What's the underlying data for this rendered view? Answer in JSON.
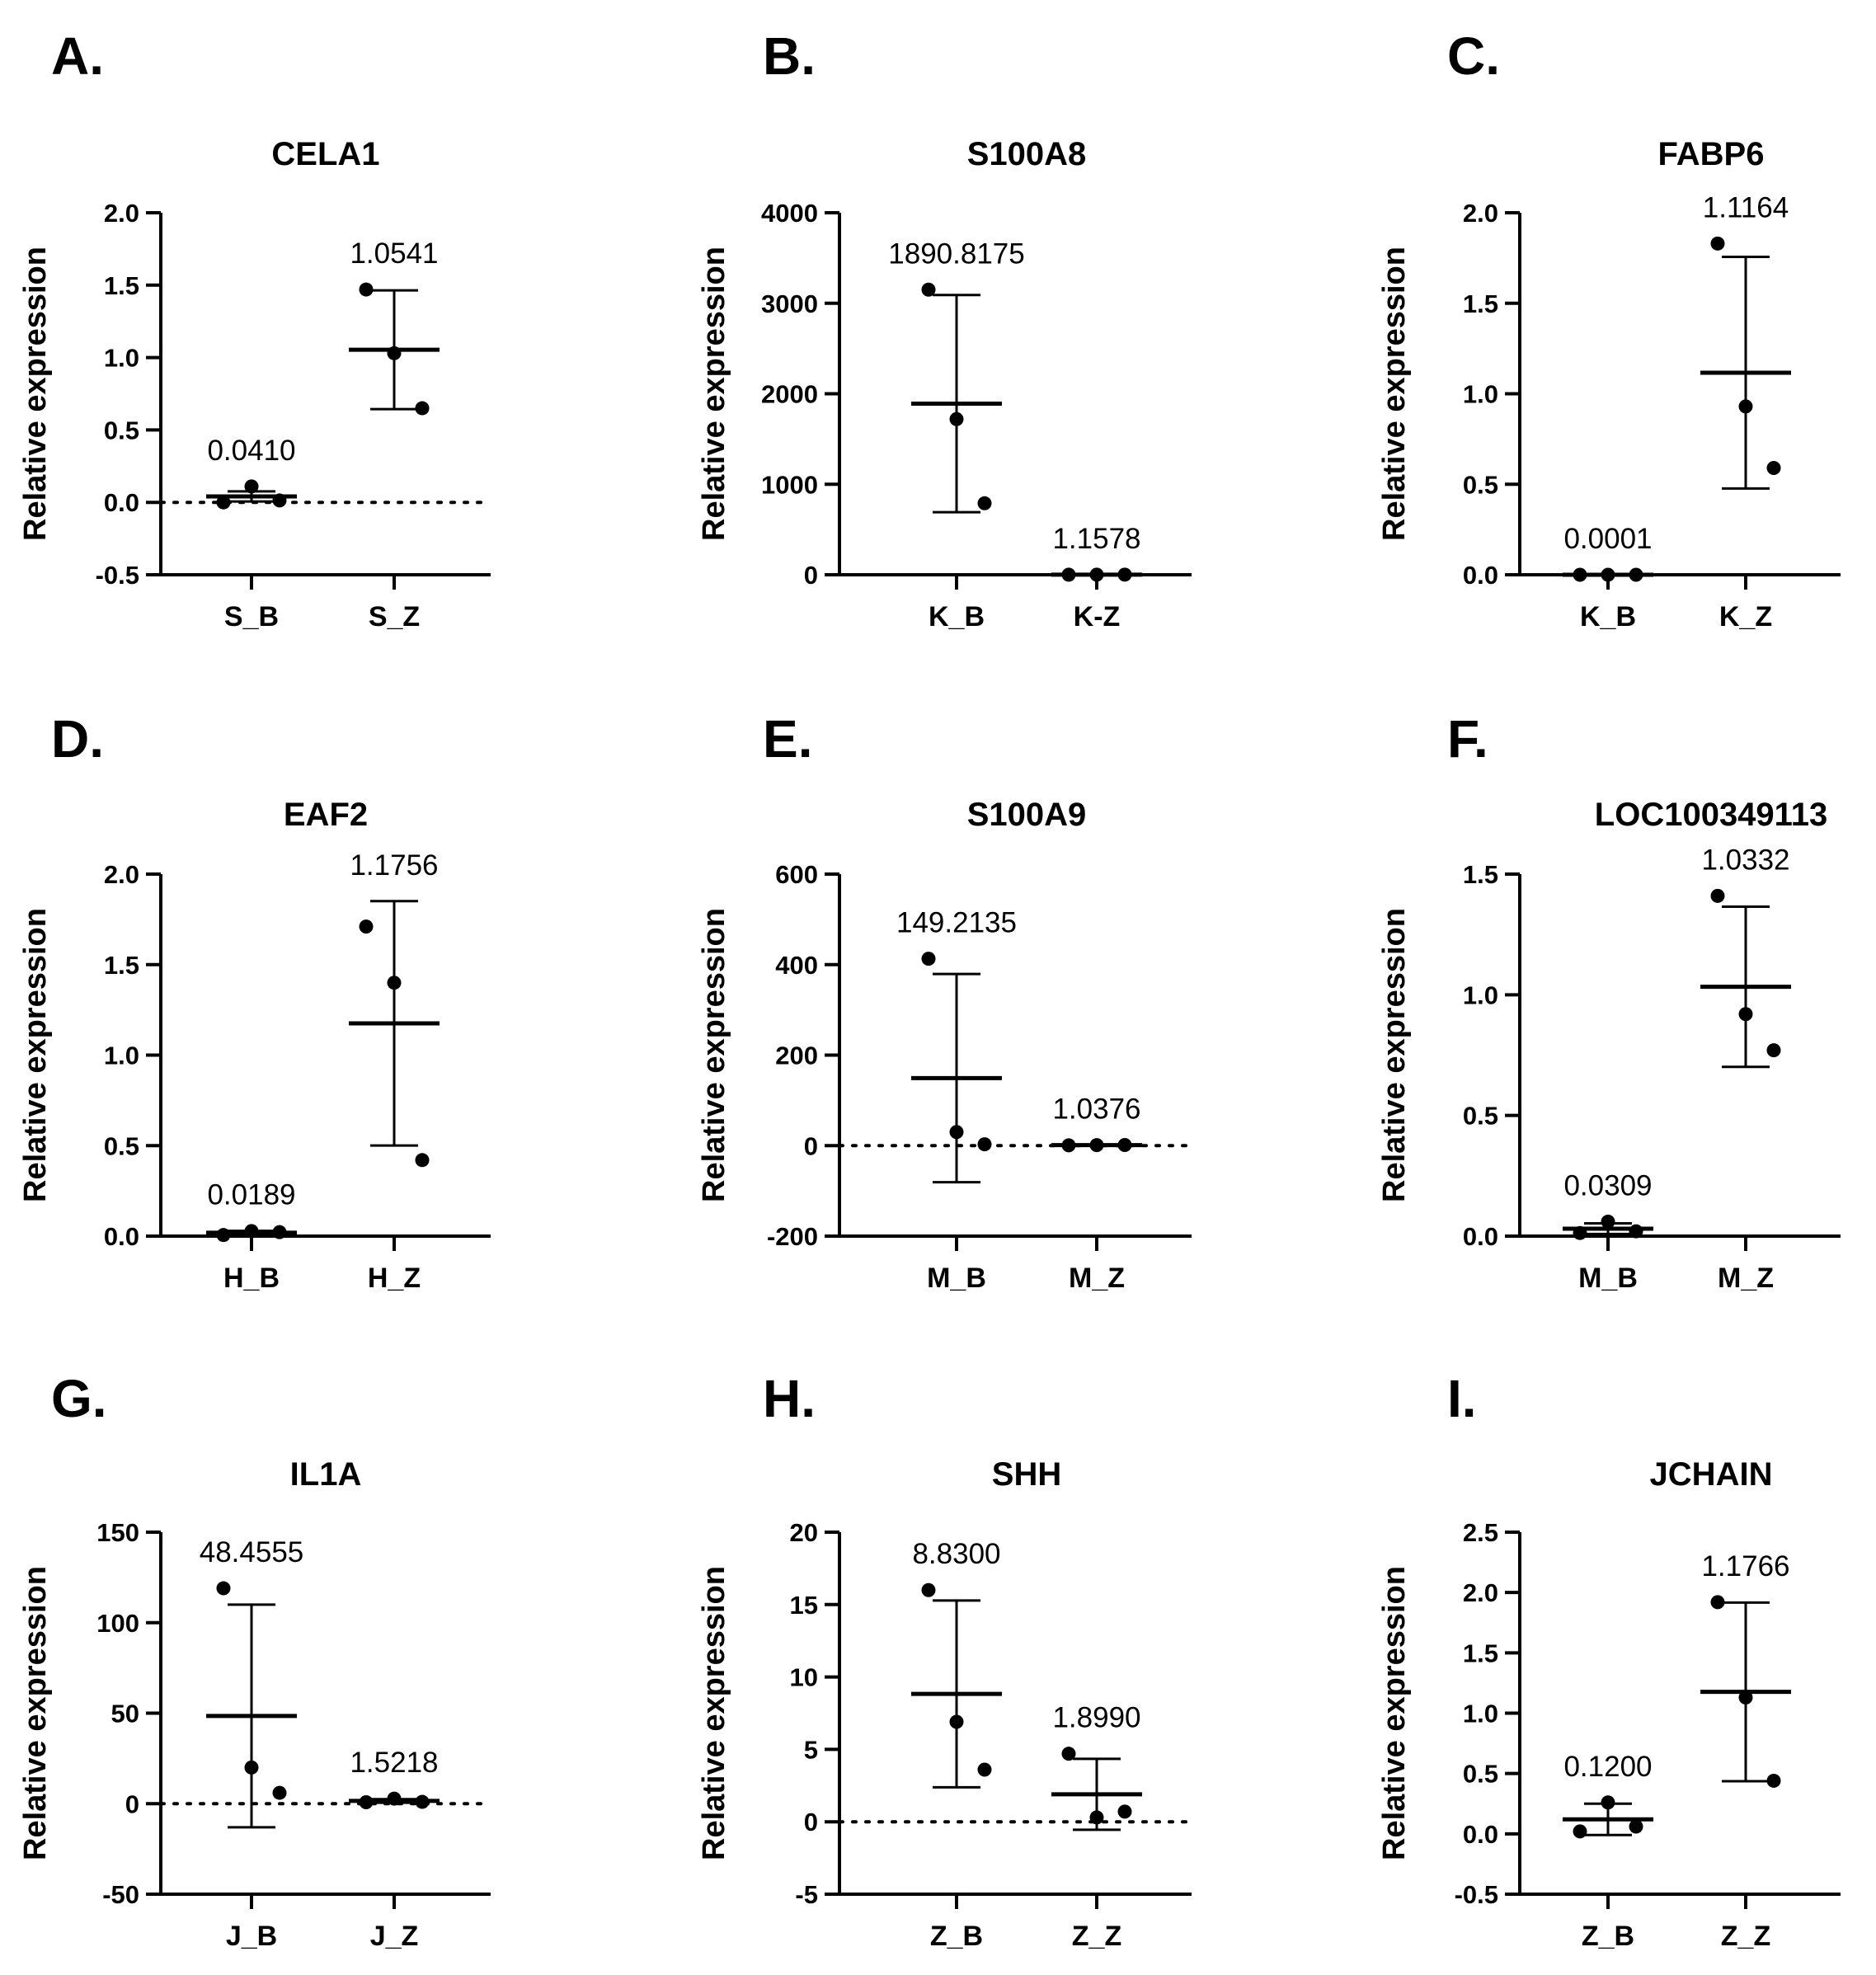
{
  "figure": {
    "ylabel": "Relative expression",
    "colors": {
      "ink": "#000000",
      "background": "#ffffff"
    }
  },
  "chart_data": [
    {
      "panel": "A.",
      "type": "scatter",
      "title": "CELA1",
      "xlabel": "",
      "ylabel": "Relative expression",
      "ylim": [
        -0.5,
        2.0
      ],
      "yticks": [
        -0.5,
        0.0,
        0.5,
        1.0,
        1.5,
        2.0
      ],
      "ytick_labels": [
        "-0.5",
        "0.0",
        "0.5",
        "1.0",
        "1.5",
        "2.0"
      ],
      "zero_line": true,
      "groups": [
        {
          "name": "S_B",
          "mean": 0.041,
          "sd": 0.035,
          "label": "0.0410",
          "points": [
            0.0,
            0.11,
            0.013
          ]
        },
        {
          "name": "S_Z",
          "mean": 1.0541,
          "sd": 0.41,
          "label": "1.0541",
          "points": [
            1.47,
            1.03,
            0.65
          ]
        }
      ]
    },
    {
      "panel": "B.",
      "type": "scatter",
      "title": "S100A8",
      "xlabel": "",
      "ylabel": "Relative expression",
      "ylim": [
        0,
        4000
      ],
      "yticks": [
        0,
        1000,
        2000,
        3000,
        4000
      ],
      "ytick_labels": [
        "0",
        "1000",
        "2000",
        "3000",
        "4000"
      ],
      "zero_line": false,
      "groups": [
        {
          "name": "K_B",
          "mean": 1890.8175,
          "sd": 1200,
          "label": "1890.8175",
          "points": [
            3150,
            1720,
            790
          ]
        },
        {
          "name": "K-Z",
          "mean": 1.1578,
          "sd": 0.5,
          "label": "1.1578",
          "points": [
            0.6,
            1.2,
            1.7
          ]
        }
      ]
    },
    {
      "panel": "C.",
      "type": "scatter",
      "title": "FABP6",
      "xlabel": "",
      "ylabel": "Relative expression",
      "ylim": [
        0.0,
        2.0
      ],
      "yticks": [
        0.0,
        0.5,
        1.0,
        1.5,
        2.0
      ],
      "ytick_labels": [
        "0.0",
        "0.5",
        "1.0",
        "1.5",
        "2.0"
      ],
      "zero_line": false,
      "groups": [
        {
          "name": "K_B",
          "mean": 0.0001,
          "sd": 0.0,
          "label": "0.0001",
          "points": [
            0.0,
            0.0,
            0.0
          ]
        },
        {
          "name": "K_Z",
          "mean": 1.1164,
          "sd": 0.64,
          "label": "1.1164",
          "points": [
            1.83,
            0.93,
            0.59
          ]
        }
      ]
    },
    {
      "panel": "D.",
      "type": "scatter",
      "title": "EAF2",
      "xlabel": "",
      "ylabel": "Relative expression",
      "ylim": [
        0.0,
        2.0
      ],
      "yticks": [
        0.0,
        0.5,
        1.0,
        1.5,
        2.0
      ],
      "ytick_labels": [
        "0.0",
        "0.5",
        "1.0",
        "1.5",
        "2.0"
      ],
      "zero_line": false,
      "groups": [
        {
          "name": "H_B",
          "mean": 0.0189,
          "sd": 0.01,
          "label": "0.0189",
          "points": [
            0.006,
            0.028,
            0.022
          ]
        },
        {
          "name": "H_Z",
          "mean": 1.1756,
          "sd": 0.675,
          "label": "1.1756",
          "points": [
            1.71,
            1.4,
            0.42
          ]
        }
      ]
    },
    {
      "panel": "E.",
      "type": "scatter",
      "title": "S100A9",
      "xlabel": "",
      "ylabel": "Relative expression",
      "ylim": [
        -200,
        600
      ],
      "yticks": [
        -200,
        0,
        200,
        400,
        600
      ],
      "ytick_labels": [
        "-200",
        "0",
        "200",
        "400",
        "600"
      ],
      "zero_line": true,
      "groups": [
        {
          "name": "M_B",
          "mean": 149.2135,
          "sd": 230,
          "label": "149.2135",
          "points": [
            413,
            30,
            3
          ]
        },
        {
          "name": "M_Z",
          "mean": 1.0376,
          "sd": 0.5,
          "label": "1.0376",
          "points": [
            0.6,
            1.1,
            1.4
          ]
        }
      ]
    },
    {
      "panel": "F.",
      "type": "scatter",
      "title": "LOC100349113",
      "xlabel": "",
      "ylabel": "Relative expression",
      "ylim": [
        0.0,
        1.5
      ],
      "yticks": [
        0.0,
        0.5,
        1.0,
        1.5
      ],
      "ytick_labels": [
        "0.0",
        "0.5",
        "1.0",
        "1.5"
      ],
      "zero_line": false,
      "groups": [
        {
          "name": "M_B",
          "mean": 0.0309,
          "sd": 0.022,
          "label": "0.0309",
          "points": [
            0.013,
            0.06,
            0.02
          ]
        },
        {
          "name": "M_Z",
          "mean": 1.0332,
          "sd": 0.332,
          "label": "1.0332",
          "points": [
            1.41,
            0.92,
            0.77
          ]
        }
      ]
    },
    {
      "panel": "G.",
      "type": "scatter",
      "title": "IL1A",
      "xlabel": "",
      "ylabel": "Relative expression",
      "ylim": [
        -50,
        150
      ],
      "yticks": [
        -50,
        0,
        50,
        100,
        150
      ],
      "ytick_labels": [
        "-50",
        "0",
        "50",
        "100",
        "150"
      ],
      "zero_line": true,
      "groups": [
        {
          "name": "J_B",
          "mean": 48.4555,
          "sd": 61.5,
          "label": "48.4555",
          "points": [
            119,
            20,
            6
          ]
        },
        {
          "name": "J_Z",
          "mean": 1.5218,
          "sd": 1.0,
          "label": "1.5218",
          "points": [
            0.8,
            2.8,
            1.0
          ]
        }
      ]
    },
    {
      "panel": "H.",
      "type": "scatter",
      "title": "SHH",
      "xlabel": "",
      "ylabel": "Relative expression",
      "ylim": [
        -5,
        20
      ],
      "yticks": [
        -5,
        0,
        5,
        10,
        15,
        20
      ],
      "ytick_labels": [
        "-5",
        "0",
        "5",
        "10",
        "15",
        "20"
      ],
      "zero_line": true,
      "groups": [
        {
          "name": "Z_B",
          "mean": 8.83,
          "sd": 6.45,
          "label": "8.8300",
          "points": [
            16.0,
            6.9,
            3.6
          ]
        },
        {
          "name": "Z_Z",
          "mean": 1.899,
          "sd": 2.45,
          "label": "1.8990",
          "points": [
            4.7,
            0.3,
            0.7
          ]
        }
      ]
    },
    {
      "panel": "I.",
      "type": "scatter",
      "title": "JCHAIN",
      "xlabel": "",
      "ylabel": "Relative expression",
      "ylim": [
        -0.5,
        2.5
      ],
      "yticks": [
        -0.5,
        0.0,
        0.5,
        1.0,
        1.5,
        2.0,
        2.5
      ],
      "ytick_labels": [
        "-0.5",
        "0.0",
        "0.5",
        "1.0",
        "1.5",
        "2.0",
        "2.5"
      ],
      "zero_line": false,
      "groups": [
        {
          "name": "Z_B",
          "mean": 0.12,
          "sd": 0.13,
          "label": "0.1200",
          "points": [
            0.02,
            0.26,
            0.06
          ]
        },
        {
          "name": "Z_Z",
          "mean": 1.1766,
          "sd": 0.74,
          "label": "1.1766",
          "points": [
            1.92,
            1.13,
            0.44
          ]
        }
      ]
    }
  ]
}
